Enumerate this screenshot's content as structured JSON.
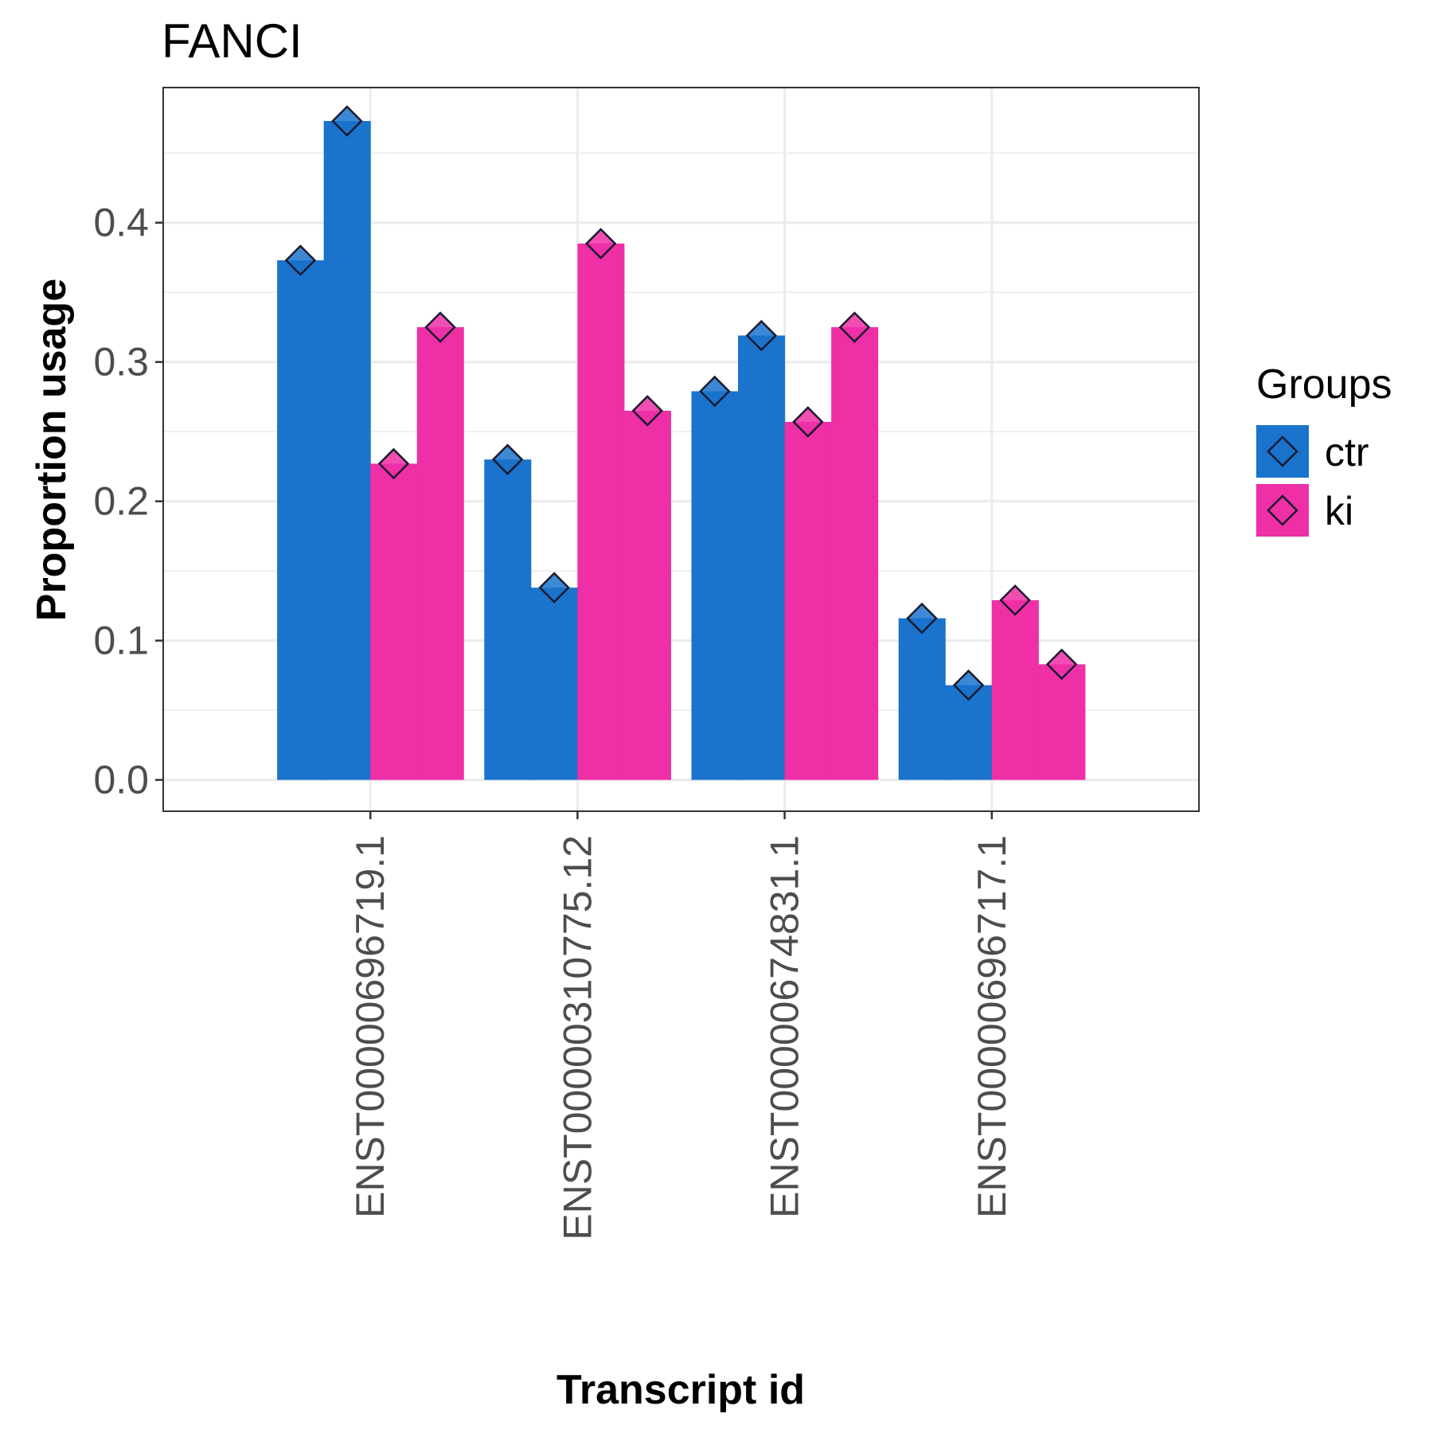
{
  "chart_data": {
    "type": "bar",
    "title": "FANCI",
    "xlabel": "Transcript id",
    "ylabel": "Proportion usage",
    "categories": [
      "ENST00000696719.1",
      "ENST00000310775.12",
      "ENST00000674831.1",
      "ENST00000696717.1"
    ],
    "yticks": [
      "0.0",
      "0.1",
      "0.2",
      "0.3",
      "0.4"
    ],
    "ylim": [
      -0.0225,
      0.497
    ],
    "grid": true,
    "legend": {
      "title": "Groups",
      "placement": "right",
      "entries": [
        {
          "label": "ctr",
          "color": "#1a73cc"
        },
        {
          "label": "ki",
          "color": "#ee2fa6"
        }
      ]
    },
    "bars_per_category": [
      {
        "group": "ctr",
        "values": [
          0.373,
          0.23,
          0.279,
          0.116
        ]
      },
      {
        "group": "ctr",
        "values": [
          0.473,
          0.138,
          0.319,
          0.068
        ]
      },
      {
        "group": "ki",
        "values": [
          0.227,
          0.385,
          0.257,
          0.129
        ]
      },
      {
        "group": "ki",
        "values": [
          0.325,
          0.265,
          0.325,
          0.083
        ]
      }
    ],
    "colors": {
      "ctr": "#1a73cc",
      "ki": "#ee2fa6",
      "marker_outline": "#1a1a2e"
    }
  }
}
